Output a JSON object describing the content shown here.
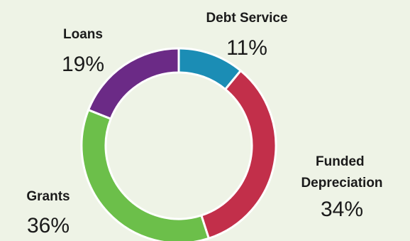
{
  "chart_data": {
    "type": "pie",
    "subtype": "donut",
    "categories": [
      "Debt Service",
      "Funded Depreciation",
      "Grants",
      "Loans"
    ],
    "values": [
      11,
      34,
      36,
      19
    ],
    "value_labels": [
      "11%",
      "34%",
      "36%",
      "19%"
    ],
    "colors": [
      "#1b8db5",
      "#c22f4a",
      "#6cbf4a",
      "#6b2a86"
    ],
    "background": "#eef3e6",
    "slice_separator_color": "#ffffff"
  }
}
